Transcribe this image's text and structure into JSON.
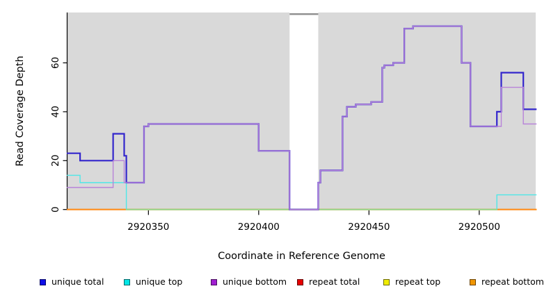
{
  "chart_data": {
    "type": "step-line",
    "title": "",
    "xlabel": "Coordinate in Reference Genome",
    "ylabel": "Read Coverage Depth",
    "xlim": [
      2920313,
      2920526
    ],
    "ylim": [
      0,
      80.6
    ],
    "x_ticks": [
      "2920350",
      "2920400",
      "2920450",
      "2920500"
    ],
    "x_tick_values": [
      2920350,
      2920400,
      2920450,
      2920500
    ],
    "y_ticks": [
      0,
      20,
      40,
      60
    ],
    "grid": false,
    "background": "#d9d9d9",
    "no_data_gap": {
      "x_start": 2920414,
      "x_end": 2920427,
      "top_bar_color": "#8c8c8c"
    },
    "series": [
      {
        "name": "repeat total",
        "color": "#e60000",
        "width": 1.6,
        "points": [
          [
            2920313,
            0
          ]
        ]
      },
      {
        "name": "repeat top",
        "color": "#f0ed00",
        "width": 1.6,
        "points": [
          [
            2920313,
            0
          ]
        ]
      },
      {
        "name": "repeat bottom",
        "color": "#ff8c1a",
        "width": 2,
        "points": [
          [
            2920313,
            0
          ]
        ]
      },
      {
        "name": "unique top",
        "color": "#4de8e8",
        "width": 1.4,
        "points": [
          [
            2920313,
            14
          ],
          [
            2920319,
            11
          ],
          [
            2920340,
            0
          ],
          [
            2920508,
            6
          ]
        ]
      },
      {
        "name": "zero-line-overlap",
        "color": "#8fd98f",
        "width": 1.8,
        "points": [
          [
            2920340,
            0
          ]
        ],
        "end": 2920508
      },
      {
        "name": "unique total",
        "color": "#3326cc",
        "width": 2.2,
        "points": [
          [
            2920313,
            23
          ],
          [
            2920319,
            20
          ],
          [
            2920334,
            31
          ],
          [
            2920339,
            22
          ],
          [
            2920340,
            11
          ],
          [
            2920348,
            34
          ],
          [
            2920350,
            35
          ],
          [
            2920400,
            24
          ],
          [
            2920414,
            0
          ],
          [
            2920427,
            11
          ],
          [
            2920428,
            16
          ],
          [
            2920438,
            38
          ],
          [
            2920440,
            42
          ],
          [
            2920444,
            43
          ],
          [
            2920451,
            44
          ],
          [
            2920456,
            58
          ],
          [
            2920457,
            59
          ],
          [
            2920461,
            60
          ],
          [
            2920466,
            74
          ],
          [
            2920470,
            75
          ],
          [
            2920492,
            60
          ],
          [
            2920496,
            34
          ],
          [
            2920508,
            40
          ],
          [
            2920510,
            56
          ],
          [
            2920520,
            41
          ]
        ]
      },
      {
        "name": "unique bottom",
        "color": "#b883d9",
        "width": 1.4,
        "points": [
          [
            2920313,
            9
          ],
          [
            2920334,
            20
          ],
          [
            2920339,
            11
          ],
          [
            2920348,
            34
          ],
          [
            2920350,
            35
          ],
          [
            2920400,
            24
          ],
          [
            2920414,
            0
          ],
          [
            2920427,
            11
          ],
          [
            2920428,
            16
          ],
          [
            2920438,
            38
          ],
          [
            2920440,
            42
          ],
          [
            2920444,
            43
          ],
          [
            2920451,
            44
          ],
          [
            2920456,
            58
          ],
          [
            2920457,
            59
          ],
          [
            2920461,
            60
          ],
          [
            2920466,
            74
          ],
          [
            2920470,
            75
          ],
          [
            2920492,
            60
          ],
          [
            2920496,
            34
          ],
          [
            2920510,
            50
          ],
          [
            2920520,
            35
          ]
        ]
      }
    ],
    "legend": {
      "position": "bottom",
      "items": [
        {
          "label": "unique total",
          "color": "#0f0fe8"
        },
        {
          "label": "unique top",
          "color": "#00e6e6"
        },
        {
          "label": "unique bottom",
          "color": "#a01fd0"
        },
        {
          "label": "repeat total",
          "color": "#e60000"
        },
        {
          "label": "repeat top",
          "color": "#f0ed00"
        },
        {
          "label": "repeat bottom",
          "color": "#f09600"
        }
      ]
    }
  }
}
